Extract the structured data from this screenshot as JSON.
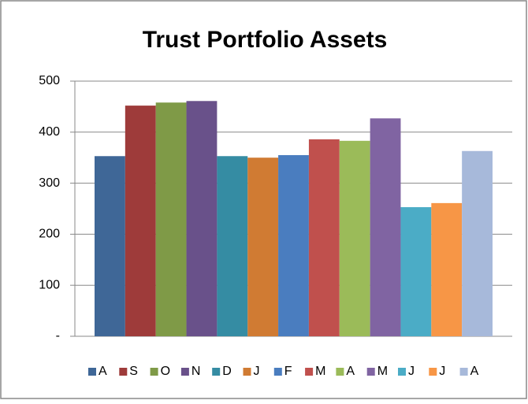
{
  "chart_data": {
    "type": "bar",
    "title": "Trust Portfolio Assets",
    "categories": [
      null
    ],
    "series": [
      {
        "name": "A",
        "color": "#3f6797",
        "values": [
          353
        ]
      },
      {
        "name": "S",
        "color": "#9e3b3a",
        "values": [
          452
        ]
      },
      {
        "name": "O",
        "color": "#7f9a47",
        "values": [
          458
        ]
      },
      {
        "name": "N",
        "color": "#69518a",
        "values": [
          461
        ]
      },
      {
        "name": "D",
        "color": "#358ca3",
        "values": [
          353
        ]
      },
      {
        "name": "J",
        "color": "#d07b33",
        "values": [
          350
        ]
      },
      {
        "name": "F",
        "color": "#4a7dbf",
        "values": [
          355
        ]
      },
      {
        "name": "M",
        "color": "#c0504d",
        "values": [
          386
        ]
      },
      {
        "name": "A",
        "color": "#9bbb59",
        "values": [
          383
        ]
      },
      {
        "name": "M",
        "color": "#8064a2",
        "values": [
          427
        ]
      },
      {
        "name": "J",
        "color": "#4bacc6",
        "values": [
          253
        ]
      },
      {
        "name": "J",
        "color": "#f79646",
        "values": [
          261
        ]
      },
      {
        "name": "A",
        "color": "#a7b9da",
        "values": [
          363
        ]
      }
    ],
    "ylim": [
      0,
      500
    ],
    "yticks": [
      {
        "value": 0,
        "label": "-"
      },
      100,
      200,
      300,
      400,
      500
    ],
    "grid": true,
    "legend": "bottom"
  }
}
